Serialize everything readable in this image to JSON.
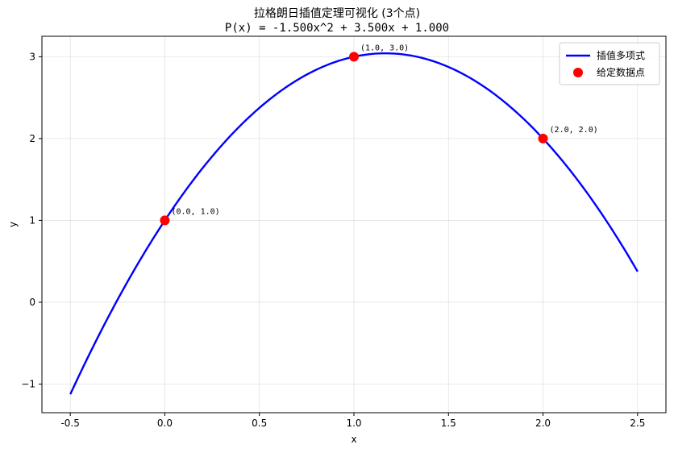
{
  "chart_data": {
    "type": "line",
    "title": "拉格朗日插值定理可视化 (3个点)",
    "subtitle": "P(x) = -1.500x^2 + 3.500x + 1.000",
    "xlabel": "x",
    "ylabel": "y",
    "xlim": [
      -0.65,
      2.65
    ],
    "ylim": [
      -1.35,
      3.25
    ],
    "xticks": [
      -0.5,
      0.0,
      0.5,
      1.0,
      1.5,
      2.0,
      2.5
    ],
    "xtick_labels": [
      "-0.5",
      "0.0",
      "0.5",
      "1.0",
      "1.5",
      "2.0",
      "2.5"
    ],
    "yticks": [
      -1,
      0,
      1,
      2,
      3
    ],
    "ytick_labels": [
      "−1",
      "0",
      "1",
      "2",
      "3"
    ],
    "grid": true,
    "legend_position": "top-right",
    "polynomial_coefficients": {
      "a": -1.5,
      "b": 3.5,
      "c": 1.0
    },
    "curve_domain": [
      -0.5,
      2.5
    ],
    "series": [
      {
        "name": "插值多项式",
        "kind": "line",
        "color": "#0000ff"
      },
      {
        "name": "给定数据点",
        "kind": "markers",
        "color": "#ff0000",
        "points": [
          {
            "x": 0.0,
            "y": 1.0,
            "label": "(0.0, 1.0)"
          },
          {
            "x": 1.0,
            "y": 3.0,
            "label": "(1.0, 3.0)"
          },
          {
            "x": 2.0,
            "y": 2.0,
            "label": "(2.0, 2.0)"
          }
        ]
      }
    ]
  }
}
